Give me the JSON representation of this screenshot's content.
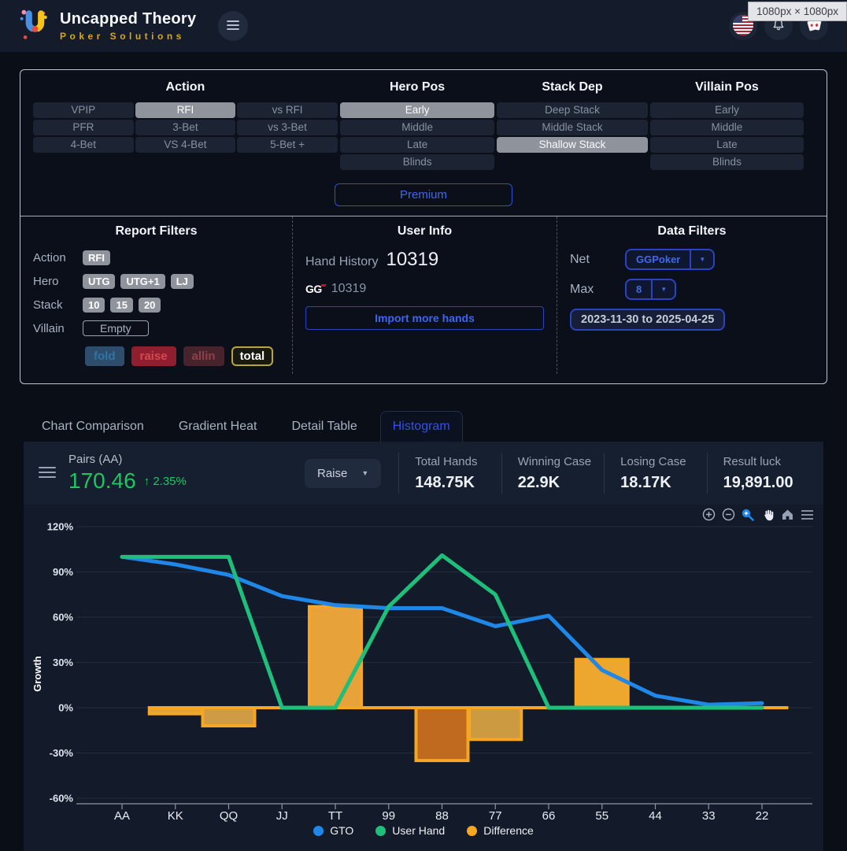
{
  "header": {
    "brand_title": "Uncapped Theory",
    "brand_subtitle": "Poker Solutions",
    "size_tooltip": "1080px × 1080px",
    "icons": [
      "brand-logo",
      "hamburger-menu-icon",
      "us-flag-icon",
      "bell-icon",
      "playing-cards-icon"
    ]
  },
  "filter_panel": {
    "groups": [
      {
        "id": "action",
        "title": "Action",
        "columns": 3,
        "buttons": [
          {
            "label": "VPIP",
            "selected": false
          },
          {
            "label": "RFI",
            "selected": true
          },
          {
            "label": "vs RFI",
            "selected": false
          },
          {
            "label": "PFR",
            "selected": false
          },
          {
            "label": "3-Bet",
            "selected": false
          },
          {
            "label": "vs 3-Bet",
            "selected": false
          },
          {
            "label": "4-Bet",
            "selected": false
          },
          {
            "label": "VS 4-Bet",
            "selected": false
          },
          {
            "label": "5-Bet +",
            "selected": false
          }
        ]
      },
      {
        "id": "hero-pos",
        "title": "Hero Pos",
        "columns": 1,
        "buttons": [
          {
            "label": "Early",
            "selected": true
          },
          {
            "label": "Middle",
            "selected": false
          },
          {
            "label": "Late",
            "selected": false
          },
          {
            "label": "Blinds",
            "selected": false
          }
        ]
      },
      {
        "id": "stack-dep",
        "title": "Stack Dep",
        "columns": 1,
        "buttons": [
          {
            "label": "Deep Stack",
            "selected": false
          },
          {
            "label": "Middle Stack",
            "selected": false
          },
          {
            "label": "Shallow Stack",
            "selected": true
          }
        ]
      },
      {
        "id": "villain-pos",
        "title": "Villain Pos",
        "columns": 1,
        "buttons": [
          {
            "label": "Early",
            "selected": false
          },
          {
            "label": "Middle",
            "selected": false
          },
          {
            "label": "Late",
            "selected": false
          },
          {
            "label": "Blinds",
            "selected": false
          }
        ]
      }
    ],
    "premium_label": "Premium",
    "report_filters": {
      "title": "Report Filters",
      "rows": [
        {
          "label": "Action",
          "chips": [
            "RFI"
          ]
        },
        {
          "label": "Hero",
          "chips": [
            "UTG",
            "UTG+1",
            "LJ"
          ]
        },
        {
          "label": "Stack",
          "chips": [
            "10",
            "15",
            "20"
          ]
        },
        {
          "label": "Villain",
          "chips": [],
          "placeholder": "Empty"
        }
      ],
      "result_chips": [
        {
          "label": "fold",
          "style": "fold"
        },
        {
          "label": "raise",
          "style": "raise"
        },
        {
          "label": "allin",
          "style": "allin"
        },
        {
          "label": "total",
          "style": "total"
        }
      ]
    },
    "user_info": {
      "title": "User Info",
      "hand_history_label": "Hand History",
      "hand_history_value": "10319",
      "network_logo_text": "GG",
      "network_hands": "10319",
      "import_button_label": "Import more hands"
    },
    "data_filters": {
      "title": "Data Filters",
      "net_label": "Net",
      "net_value": "GGPoker",
      "max_label": "Max",
      "max_value": "8",
      "date_range": "2023-11-30 to 2025-04-25"
    }
  },
  "tabs": [
    {
      "label": "Chart Comparison",
      "active": false
    },
    {
      "label": "Gradient Heat",
      "active": false
    },
    {
      "label": "Detail Table",
      "active": false
    },
    {
      "label": "Histogram",
      "active": true
    }
  ],
  "stats_bar": {
    "hand_label": "Pairs (AA)",
    "hand_value": "170.46",
    "change_arrow": "↑",
    "change_value": "2.35%",
    "action_select_value": "Raise",
    "stats": [
      {
        "label": "Total Hands",
        "value": "148.75K"
      },
      {
        "label": "Winning Case",
        "value": "22.9K"
      },
      {
        "label": "Losing Case",
        "value": "18.17K"
      },
      {
        "label": "Result luck",
        "value": "19,891.00"
      }
    ]
  },
  "chart_toolbar_icons": [
    "zoom-in-icon",
    "zoom-out-icon",
    "box-zoom-icon",
    "pan-icon",
    "home-icon",
    "chart-menu-icon"
  ],
  "chart_data": {
    "type": "line+bar",
    "title": "",
    "ylabel": "Growth",
    "categories": [
      "AA",
      "KK",
      "QQ",
      "JJ",
      "TT",
      "99",
      "88",
      "77",
      "66",
      "55",
      "44",
      "33",
      "22"
    ],
    "ylim": [
      -60,
      120
    ],
    "ytick_values": [
      120,
      90,
      60,
      30,
      0,
      -30,
      -60
    ],
    "ytick_labels": [
      "120%",
      "90%",
      "60%",
      "30%",
      "0%",
      "-30%",
      "-60%"
    ],
    "grid": true,
    "legend_position": "bottom",
    "series": [
      {
        "name": "GTO",
        "type": "line",
        "color": "#1f87e8",
        "values": [
          100,
          95,
          88,
          74,
          68,
          66,
          66,
          54,
          61,
          25,
          8,
          2,
          3
        ]
      },
      {
        "name": "User Hand",
        "type": "line",
        "color": "#1dbf7b",
        "values": [
          100,
          100,
          100,
          0,
          0,
          67,
          101,
          75,
          0,
          0,
          0,
          0,
          0
        ]
      },
      {
        "name": "Difference",
        "type": "bar",
        "color": "#f5a623",
        "values": [
          null,
          -4,
          -12,
          0,
          67,
          0,
          -35,
          -21,
          0,
          32,
          0,
          0,
          0
        ],
        "bar_fills": [
          null,
          "#e2a33c",
          "#cf9c45",
          null,
          "#e7a23a",
          null,
          "#c06a20",
          "#cc9a41",
          null,
          "#eda62e",
          null,
          null,
          null
        ]
      }
    ]
  },
  "colors": {
    "accent_blue": "#2b43c0",
    "link_blue": "#3b66ee",
    "positive_green": "#1fc55e",
    "selected_gray": "#8e939c",
    "brand_gold": "#d9a61b",
    "bar_border_orange": "#f5a623",
    "gto_line": "#1f87e8",
    "user_hand_line": "#1dbf7b"
  }
}
